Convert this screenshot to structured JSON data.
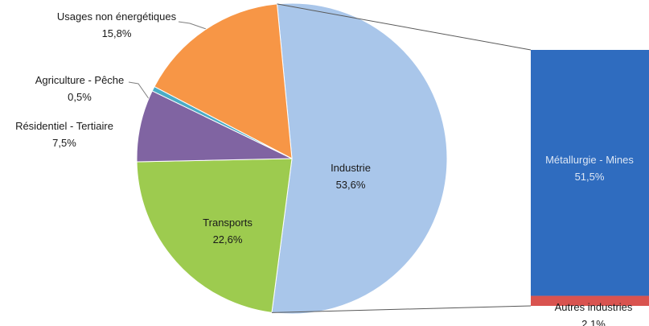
{
  "chart_data": {
    "type": "pie-of-bar",
    "categories": [
      "Industrie",
      "Transports",
      "Résidentiel - Tertiaire",
      "Agriculture - Pêche",
      "Usages non énergétiques"
    ],
    "values": [
      53.6,
      22.6,
      7.5,
      0.5,
      15.8
    ],
    "value_labels": [
      "53,6%",
      "22,6%",
      "7,5%",
      "0,5%",
      "15,8%"
    ],
    "colors": [
      "#a9c6ea",
      "#9dcb4f",
      "#8064a2",
      "#4bacc6",
      "#f79646"
    ],
    "bar": {
      "categories": [
        "Métallurgie - Mines",
        "Autres industries"
      ],
      "values": [
        51.5,
        2.1
      ],
      "value_labels": [
        "51,5%",
        "2,1%"
      ],
      "colors": [
        "#2f6cbf",
        "#d9534f"
      ]
    }
  }
}
